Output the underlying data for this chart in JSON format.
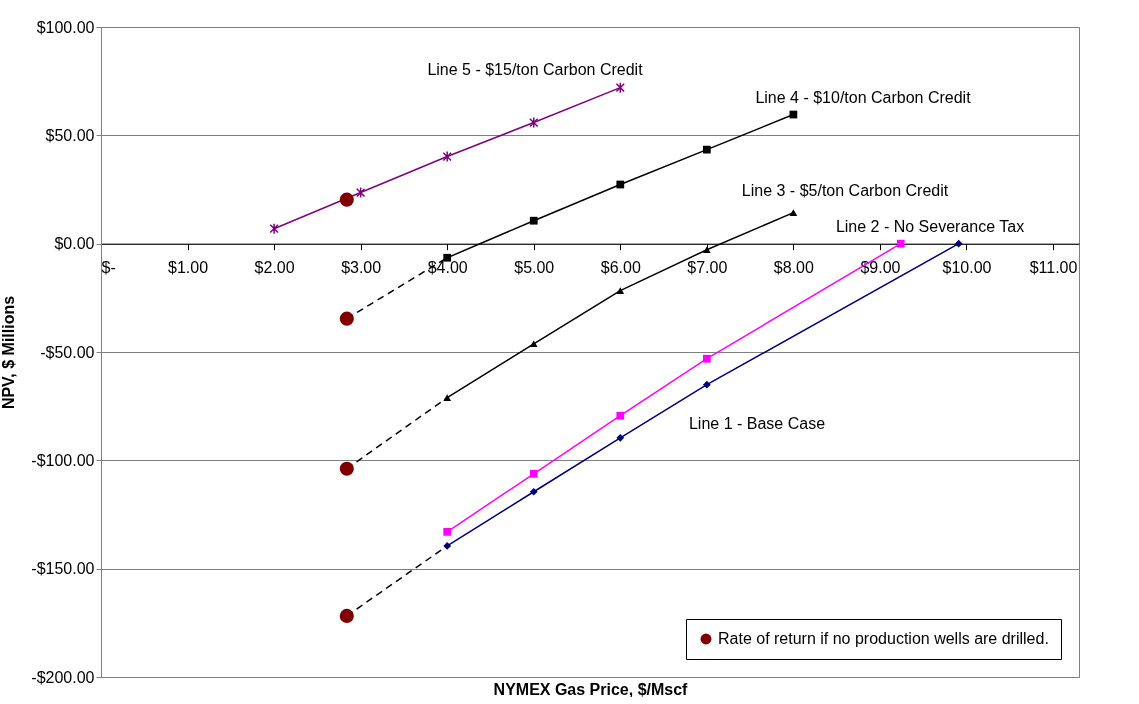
{
  "chart_data": {
    "type": "line",
    "xlabel": "NYMEX Gas Price, $/Mscf",
    "ylabel": "NPV, $ Millions",
    "xlim": [
      0,
      11.3
    ],
    "ylim": [
      -200,
      100
    ],
    "xticks": [
      {
        "value": 0,
        "label": "$-"
      },
      {
        "value": 1,
        "label": "$1.00"
      },
      {
        "value": 2,
        "label": "$2.00"
      },
      {
        "value": 3,
        "label": "$3.00"
      },
      {
        "value": 4,
        "label": "$4.00"
      },
      {
        "value": 5,
        "label": "$5.00"
      },
      {
        "value": 6,
        "label": "$6.00"
      },
      {
        "value": 7,
        "label": "$7.00"
      },
      {
        "value": 8,
        "label": "$8.00"
      },
      {
        "value": 9,
        "label": "$9.00"
      },
      {
        "value": 10,
        "label": "$10.00"
      },
      {
        "value": 11,
        "label": "$11.00"
      }
    ],
    "yticks": [
      {
        "value": -200,
        "label": "-$200.00"
      },
      {
        "value": -150,
        "label": "-$150.00"
      },
      {
        "value": -100,
        "label": "-$100.00"
      },
      {
        "value": -50,
        "label": "-$50.00"
      },
      {
        "value": 0,
        "label": "$0.00"
      },
      {
        "value": 50,
        "label": "$50.00"
      },
      {
        "value": 100,
        "label": "$100.00"
      }
    ],
    "grid": "y",
    "legend": "bottom right",
    "series": [
      {
        "color": "#000080",
        "marker": "diamond",
        "x": [
          4,
          5,
          6,
          7,
          9.91
        ],
        "values": [
          -139.5,
          -114.5,
          -89.6,
          -65.1,
          0
        ]
      },
      {
        "color": "#ff00ff",
        "marker": "square",
        "x": [
          4,
          5,
          6,
          7,
          9.24
        ],
        "values": [
          -133,
          -106.2,
          -79.4,
          -53.1,
          0
        ]
      },
      {
        "color": "#000000",
        "marker": "triangle",
        "x": [
          4,
          5,
          6,
          7,
          8
        ],
        "values": [
          -71.1,
          -46.2,
          -21.7,
          -2.8,
          14.3
        ]
      },
      {
        "color": "#000000",
        "marker": "square",
        "x": [
          4,
          5,
          6,
          7,
          8
        ],
        "values": [
          -6.5,
          10.6,
          27.3,
          43.4,
          59.6
        ]
      },
      {
        "color": "#800080",
        "marker": "cross",
        "x": [
          2,
          3,
          4,
          5,
          6
        ],
        "values": [
          6.9,
          23.6,
          40.2,
          55.9,
          72
        ]
      },
      {
        "color": "#000000",
        "marker": "none",
        "line_style": "dashed",
        "x": [
          2.84,
          4
        ],
        "values": [
          -171.8,
          -139.5
        ]
      },
      {
        "color": "#000000",
        "marker": "none",
        "line_style": "dashed",
        "x": [
          2.84,
          4
        ],
        "values": [
          -103.9,
          -71.1
        ]
      },
      {
        "color": "#000000",
        "marker": "none",
        "line_style": "dashed",
        "x": [
          2.84,
          4
        ],
        "values": [
          -34.6,
          -6.5
        ]
      },
      {
        "type": "scatter",
        "name": "Rate of return if no production wells are drilled.",
        "color": "#800000",
        "marker": "circle",
        "x": [
          2.84,
          2.84,
          2.84,
          2.84
        ],
        "values": [
          20.3,
          -34.6,
          -103.9,
          -171.8
        ]
      }
    ],
    "annotations": [
      "Line 5 - $15/ton Carbon Credit",
      "Line 4 - $10/ton Carbon Credit",
      "Line 3 - $5/ton Carbon Credit",
      "Line 2 - No Severance Tax",
      "Line 1 - Base Case"
    ]
  }
}
